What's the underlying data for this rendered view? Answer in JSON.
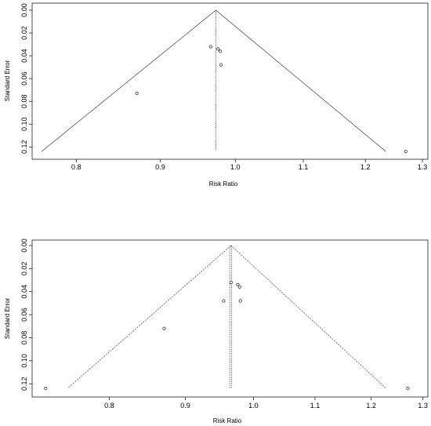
{
  "chart_data": [
    {
      "type": "scatter",
      "xlabel": "Risk Ratio",
      "ylabel": "Standard Error",
      "x_scale": "log",
      "x_ticks": [
        "0.8",
        "0.9",
        "1.0",
        "1.1",
        "1.2",
        "1.3"
      ],
      "y_ticks": [
        "0.00",
        "0.02",
        "0.04",
        "0.06",
        "0.08",
        "0.10",
        "0.12"
      ],
      "xlim": [
        0.752,
        1.31
      ],
      "ylim": [
        0.0,
        0.126
      ],
      "y_reversed": true,
      "center_estimates": [
        0.973
      ],
      "funnel_apex": 0.973,
      "funnel_base_se": 0.124,
      "funnel_left": 0.762,
      "funnel_right": 1.235,
      "funnel_line": "solid",
      "points": [
        {
          "x": 0.966,
          "y": 0.032
        },
        {
          "x": 0.976,
          "y": 0.034
        },
        {
          "x": 0.979,
          "y": 0.036
        },
        {
          "x": 0.98,
          "y": 0.048
        },
        {
          "x": 0.871,
          "y": 0.073
        },
        {
          "x": 1.27,
          "y": 0.124
        }
      ]
    },
    {
      "type": "scatter",
      "xlabel": "Risk Ratio",
      "ylabel": "Standard Error",
      "x_scale": "log",
      "x_ticks": [
        "0.8",
        "0.9",
        "1.0",
        "1.1",
        "1.2",
        "1.3"
      ],
      "y_ticks": [
        "0.00",
        "0.02",
        "0.04",
        "0.06",
        "0.08",
        "0.10",
        "0.12"
      ],
      "xlim": [
        0.71,
        1.31
      ],
      "ylim": [
        0.0,
        0.126
      ],
      "y_reversed": true,
      "center_estimates": [
        0.964,
        0.967
      ],
      "funnel_apex": 0.966,
      "funnel_base_se": 0.124,
      "funnel_left": 0.75,
      "funnel_right": 1.228,
      "funnel_line": "dashed",
      "points": [
        {
          "x": 0.966,
          "y": 0.032
        },
        {
          "x": 0.976,
          "y": 0.034
        },
        {
          "x": 0.979,
          "y": 0.036
        },
        {
          "x": 0.98,
          "y": 0.048
        },
        {
          "x": 0.955,
          "y": 0.048
        },
        {
          "x": 0.871,
          "y": 0.072
        },
        {
          "x": 1.27,
          "y": 0.124
        },
        {
          "x": 0.725,
          "y": 0.124
        }
      ]
    }
  ]
}
